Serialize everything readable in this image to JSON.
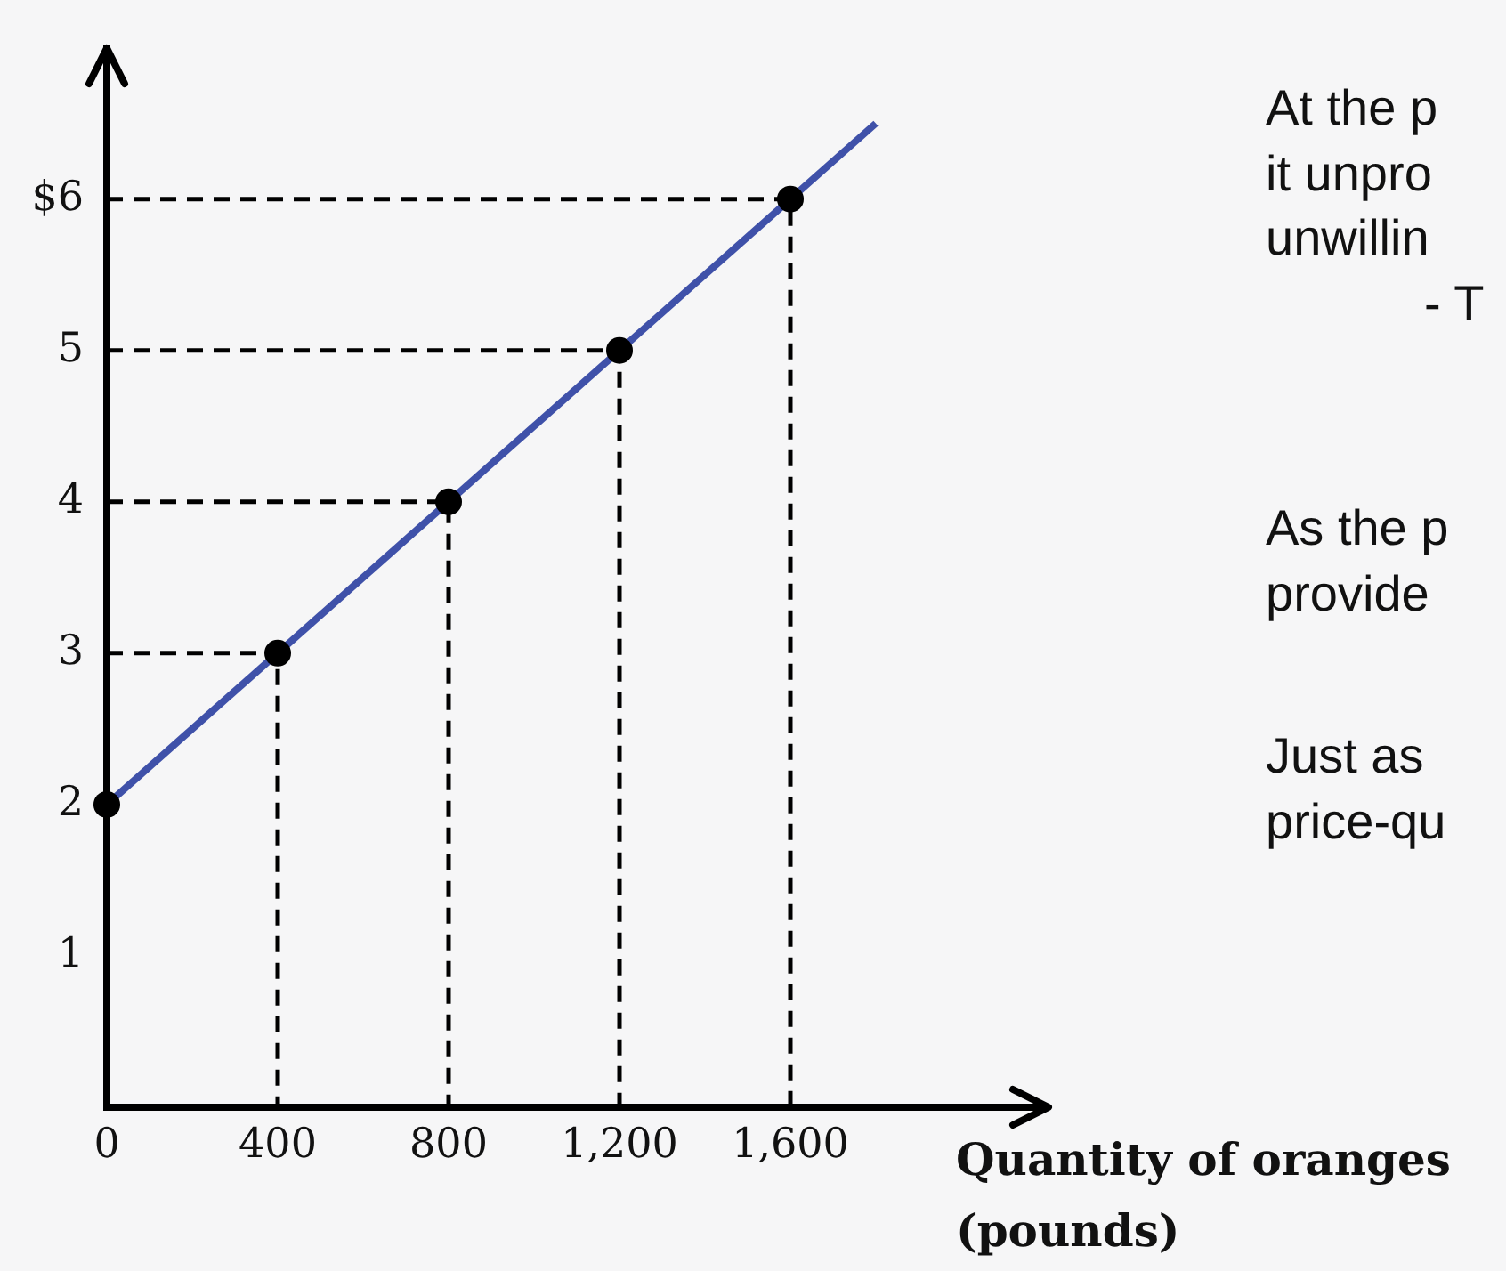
{
  "chart_data": {
    "type": "line",
    "xlabel": "Quantity of oranges\n(pounds)",
    "annotations": [
      "At the p\nit unpro\nunwillin",
      "- T",
      "As the p\nprovide",
      "Just as\nprice-qu"
    ],
    "series": [
      {
        "color": "#3f51a9",
        "x": [
          0,
          1800
        ],
        "values": [
          2,
          6.5
        ],
        "marker": "none",
        "line_style": "solid"
      },
      {
        "type": "scatter",
        "color": "#000000",
        "x": [
          0,
          400,
          800,
          1200,
          1600
        ],
        "values": [
          2,
          3,
          4,
          5,
          6
        ],
        "marker": "circle"
      },
      {
        "color": "#000000",
        "x": [
          0,
          400,
          400
        ],
        "values": [
          3,
          3,
          0
        ],
        "marker": "none",
        "line_style": "dashed"
      },
      {
        "color": "#000000",
        "x": [
          0,
          800,
          800
        ],
        "values": [
          4,
          4,
          0
        ],
        "marker": "none",
        "line_style": "dashed"
      },
      {
        "color": "#000000",
        "x": [
          0,
          1200,
          1200
        ],
        "values": [
          5,
          5,
          0
        ],
        "marker": "none",
        "line_style": "dashed"
      },
      {
        "color": "#000000",
        "x": [
          0,
          1600,
          1600
        ],
        "values": [
          6,
          6,
          0
        ],
        "marker": "none",
        "line_style": "dashed"
      }
    ],
    "xlim": [
      0,
      2200
    ],
    "ylim": [
      0,
      7
    ],
    "xticks": [
      0,
      400,
      800,
      {
        "value": 1200,
        "label": "1,200"
      },
      {
        "value": 1600,
        "label": "1,600"
      }
    ],
    "yticks": [
      1,
      2,
      3,
      4,
      5,
      {
        "value": 6,
        "label": "$6"
      }
    ]
  }
}
